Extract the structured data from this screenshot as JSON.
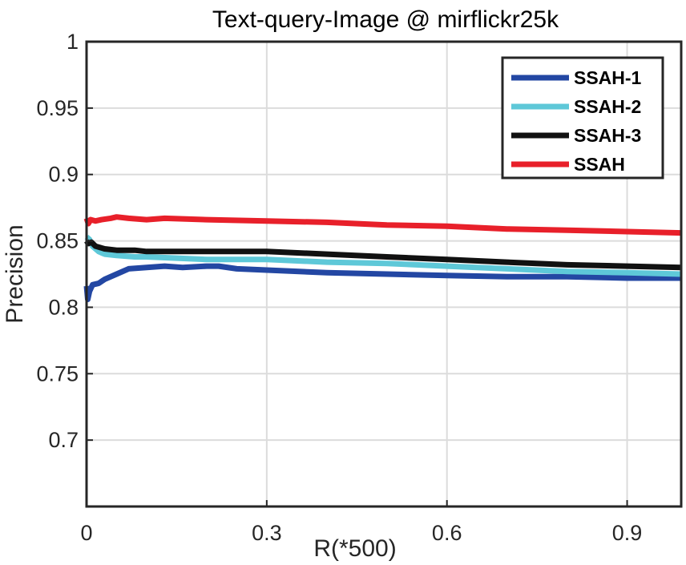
{
  "chart_data": {
    "type": "line",
    "title": "Text-query-Image @ mirflickr25k",
    "xlabel": "R(*500)",
    "ylabel": "Precision",
    "xlim": [
      0,
      0.99
    ],
    "ylim": [
      0.65,
      1.0
    ],
    "x_ticks": [
      0,
      0.3,
      0.6,
      0.9
    ],
    "x_tick_labels": [
      "0",
      "0.3",
      "0.6",
      "0.9"
    ],
    "y_ticks": [
      0.7,
      0.75,
      0.8,
      0.85,
      0.9,
      0.95,
      1.0
    ],
    "y_tick_labels": [
      "0.7",
      "0.75",
      "0.8",
      "0.85",
      "0.9",
      "0.95",
      "1"
    ],
    "grid": true,
    "legend_position": "top-right",
    "series": [
      {
        "name": "SSAH-1",
        "color": "#2347a3",
        "x": [
          0,
          0.002,
          0.005,
          0.01,
          0.02,
          0.03,
          0.05,
          0.07,
          0.1,
          0.13,
          0.16,
          0.2,
          0.22,
          0.25,
          0.3,
          0.4,
          0.5,
          0.6,
          0.7,
          0.8,
          0.9,
          0.99
        ],
        "y": [
          0.816,
          0.806,
          0.812,
          0.817,
          0.818,
          0.821,
          0.825,
          0.829,
          0.83,
          0.831,
          0.83,
          0.831,
          0.831,
          0.829,
          0.828,
          0.826,
          0.825,
          0.824,
          0.823,
          0.823,
          0.822,
          0.822
        ]
      },
      {
        "name": "SSAH-2",
        "color": "#5ec8d8",
        "x": [
          0,
          0.005,
          0.01,
          0.02,
          0.03,
          0.05,
          0.08,
          0.1,
          0.15,
          0.2,
          0.3,
          0.4,
          0.5,
          0.6,
          0.7,
          0.8,
          0.9,
          0.99
        ],
        "y": [
          0.853,
          0.851,
          0.846,
          0.842,
          0.84,
          0.839,
          0.838,
          0.838,
          0.837,
          0.836,
          0.836,
          0.834,
          0.833,
          0.831,
          0.829,
          0.827,
          0.826,
          0.825
        ]
      },
      {
        "name": "SSAH-3",
        "color": "#111111",
        "x": [
          0,
          0.003,
          0.008,
          0.015,
          0.03,
          0.05,
          0.08,
          0.1,
          0.15,
          0.2,
          0.25,
          0.3,
          0.4,
          0.5,
          0.6,
          0.7,
          0.8,
          0.9,
          0.99
        ],
        "y": [
          0.85,
          0.848,
          0.849,
          0.846,
          0.844,
          0.843,
          0.843,
          0.842,
          0.842,
          0.842,
          0.842,
          0.842,
          0.84,
          0.838,
          0.836,
          0.834,
          0.832,
          0.831,
          0.83
        ]
      },
      {
        "name": "SSAH",
        "color": "#e8202a",
        "x": [
          0,
          0.003,
          0.007,
          0.015,
          0.025,
          0.04,
          0.05,
          0.07,
          0.1,
          0.13,
          0.2,
          0.3,
          0.4,
          0.5,
          0.6,
          0.7,
          0.8,
          0.9,
          0.99
        ],
        "y": [
          0.867,
          0.863,
          0.866,
          0.865,
          0.866,
          0.867,
          0.868,
          0.867,
          0.866,
          0.867,
          0.866,
          0.865,
          0.864,
          0.862,
          0.861,
          0.859,
          0.858,
          0.857,
          0.856
        ]
      }
    ]
  }
}
